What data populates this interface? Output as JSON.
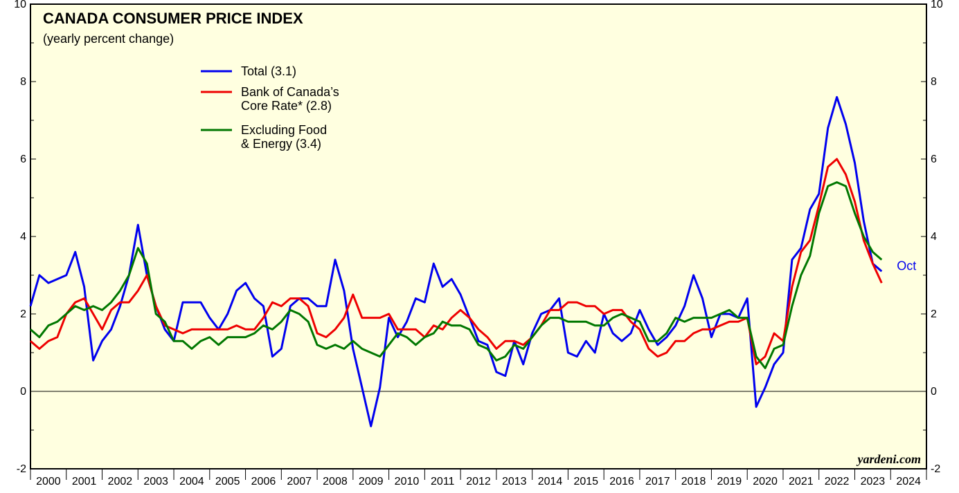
{
  "chart_data": {
    "type": "line",
    "title": "CANADA CONSUMER PRICE INDEX",
    "subtitle": "(yearly percent change)",
    "annotation": "Oct",
    "source": "yardeni.com",
    "x": [
      2000,
      2000.25,
      2000.5,
      2000.75,
      2001,
      2001.25,
      2001.5,
      2001.75,
      2002,
      2002.25,
      2002.5,
      2002.75,
      2003,
      2003.25,
      2003.5,
      2003.75,
      2004,
      2004.25,
      2004.5,
      2004.75,
      2005,
      2005.25,
      2005.5,
      2005.75,
      2006,
      2006.25,
      2006.5,
      2006.75,
      2007,
      2007.25,
      2007.5,
      2007.75,
      2008,
      2008.25,
      2008.5,
      2008.75,
      2009,
      2009.25,
      2009.5,
      2009.75,
      2010,
      2010.25,
      2010.5,
      2010.75,
      2011,
      2011.25,
      2011.5,
      2011.75,
      2012,
      2012.25,
      2012.5,
      2012.75,
      2013,
      2013.25,
      2013.5,
      2013.75,
      2014,
      2014.25,
      2014.5,
      2014.75,
      2015,
      2015.25,
      2015.5,
      2015.75,
      2016,
      2016.25,
      2016.5,
      2016.75,
      2017,
      2017.25,
      2017.5,
      2017.75,
      2018,
      2018.25,
      2018.5,
      2018.75,
      2019,
      2019.25,
      2019.5,
      2019.75,
      2020,
      2020.25,
      2020.5,
      2020.75,
      2021,
      2021.25,
      2021.5,
      2021.75,
      2022,
      2022.25,
      2022.5,
      2022.75,
      2023,
      2023.25,
      2023.5,
      2023.75
    ],
    "series": [
      {
        "name": "Total (3.1)",
        "color": "#0000ee",
        "values": [
          2.2,
          3.0,
          2.8,
          2.9,
          3.0,
          3.6,
          2.7,
          0.8,
          1.3,
          1.6,
          2.2,
          3.0,
          4.3,
          3.0,
          2.2,
          1.6,
          1.3,
          2.3,
          2.3,
          2.3,
          1.9,
          1.6,
          2.0,
          2.6,
          2.8,
          2.4,
          2.2,
          0.9,
          1.1,
          2.2,
          2.4,
          2.4,
          2.2,
          2.2,
          3.4,
          2.6,
          1.1,
          0.1,
          -0.9,
          0.1,
          1.9,
          1.4,
          1.8,
          2.4,
          2.3,
          3.3,
          2.7,
          2.9,
          2.5,
          1.9,
          1.3,
          1.2,
          0.5,
          0.4,
          1.3,
          0.7,
          1.5,
          2.0,
          2.1,
          2.4,
          1.0,
          0.9,
          1.3,
          1.0,
          2.0,
          1.5,
          1.3,
          1.5,
          2.1,
          1.6,
          1.2,
          1.4,
          1.7,
          2.2,
          3.0,
          2.4,
          1.4,
          2.0,
          2.0,
          1.9,
          2.4,
          -0.4,
          0.1,
          0.7,
          1.0,
          3.4,
          3.7,
          4.7,
          5.1,
          6.8,
          7.6,
          6.9,
          5.9,
          4.4,
          3.3,
          3.1
        ]
      },
      {
        "name": "Bank of Canada’s\nCore Rate* (2.8)",
        "color": "#ee0000",
        "values": [
          1.3,
          1.1,
          1.3,
          1.4,
          2.0,
          2.3,
          2.4,
          2.0,
          1.6,
          2.1,
          2.3,
          2.3,
          2.6,
          3.0,
          2.2,
          1.7,
          1.6,
          1.5,
          1.6,
          1.6,
          1.6,
          1.6,
          1.6,
          1.7,
          1.6,
          1.6,
          1.9,
          2.3,
          2.2,
          2.4,
          2.4,
          2.2,
          1.5,
          1.4,
          1.6,
          1.9,
          2.5,
          1.9,
          1.9,
          1.9,
          2.0,
          1.6,
          1.6,
          1.6,
          1.4,
          1.7,
          1.6,
          1.9,
          2.1,
          1.9,
          1.6,
          1.4,
          1.1,
          1.3,
          1.3,
          1.2,
          1.4,
          1.7,
          2.1,
          2.1,
          2.3,
          2.3,
          2.2,
          2.2,
          2.0,
          2.1,
          2.1,
          1.8,
          1.6,
          1.1,
          0.9,
          1.0,
          1.3,
          1.3,
          1.5,
          1.6,
          1.6,
          1.7,
          1.8,
          1.8,
          1.9,
          0.7,
          0.9,
          1.5,
          1.3,
          2.7,
          3.6,
          3.9,
          4.8,
          5.8,
          6.0,
          5.6,
          4.9,
          3.9,
          3.3,
          2.8
        ]
      },
      {
        "name": "Excluding Food\n& Energy (3.4)",
        "color": "#007700",
        "values": [
          1.6,
          1.4,
          1.7,
          1.8,
          2.0,
          2.2,
          2.1,
          2.2,
          2.1,
          2.3,
          2.6,
          3.0,
          3.7,
          3.3,
          2.0,
          1.8,
          1.3,
          1.3,
          1.1,
          1.3,
          1.4,
          1.2,
          1.4,
          1.4,
          1.4,
          1.5,
          1.7,
          1.6,
          1.8,
          2.1,
          2.0,
          1.8,
          1.2,
          1.1,
          1.2,
          1.1,
          1.3,
          1.1,
          1.0,
          0.9,
          1.2,
          1.5,
          1.4,
          1.2,
          1.4,
          1.5,
          1.8,
          1.7,
          1.7,
          1.6,
          1.2,
          1.1,
          0.8,
          0.9,
          1.2,
          1.1,
          1.4,
          1.7,
          1.9,
          1.9,
          1.8,
          1.8,
          1.8,
          1.7,
          1.7,
          1.9,
          2.0,
          1.9,
          1.8,
          1.3,
          1.3,
          1.5,
          1.9,
          1.8,
          1.9,
          1.9,
          1.9,
          2.0,
          2.1,
          1.9,
          1.9,
          0.9,
          0.6,
          1.1,
          1.2,
          2.2,
          3.0,
          3.5,
          4.6,
          5.3,
          5.4,
          5.3,
          4.6,
          4.0,
          3.6,
          3.4
        ]
      }
    ],
    "xlim": [
      2000,
      2025
    ],
    "xticks": [
      2000,
      2001,
      2002,
      2003,
      2004,
      2005,
      2006,
      2007,
      2008,
      2009,
      2010,
      2011,
      2012,
      2013,
      2014,
      2015,
      2016,
      2017,
      2018,
      2019,
      2020,
      2021,
      2022,
      2023,
      2024,
      2025
    ],
    "ylim": [
      -2,
      10
    ],
    "yticks": [
      -2,
      0,
      2,
      4,
      6,
      8,
      10
    ],
    "background": "#ffffe0"
  }
}
